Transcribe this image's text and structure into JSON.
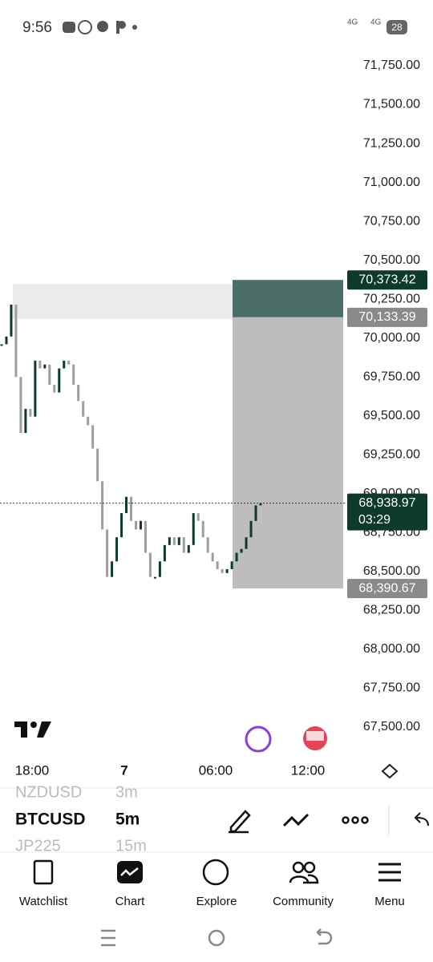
{
  "status_bar": {
    "time": "9:56",
    "network_1": "4G",
    "network_2": "4G",
    "battery": "28"
  },
  "chart": {
    "price_ticks": [
      {
        "value": 71750,
        "label": "71,750.00"
      },
      {
        "value": 71500,
        "label": "71,500.00"
      },
      {
        "value": 71250,
        "label": "71,250.00"
      },
      {
        "value": 71000,
        "label": "71,000.00"
      },
      {
        "value": 70750,
        "label": "70,750.00"
      },
      {
        "value": 70500,
        "label": "70,500.00"
      },
      {
        "value": 70250,
        "label": "70,250.00"
      },
      {
        "value": 70000,
        "label": "70,000.00"
      },
      {
        "value": 69750,
        "label": "69,750.00"
      },
      {
        "value": 69500,
        "label": "69,500.00"
      },
      {
        "value": 69250,
        "label": "69,250.00"
      },
      {
        "value": 69000,
        "label": "69,000.00"
      },
      {
        "value": 68750,
        "label": "68,750.00"
      },
      {
        "value": 68500,
        "label": "68,500.00"
      },
      {
        "value": 68250,
        "label": "68,250.00"
      },
      {
        "value": 68000,
        "label": "68,000.00"
      },
      {
        "value": 67750,
        "label": "67,750.00"
      },
      {
        "value": 67500,
        "label": "67,500.00"
      }
    ],
    "closes": [
      69960,
      70010,
      70215,
      69750,
      69390,
      69545,
      69495,
      69855,
      69805,
      69830,
      69700,
      69650,
      69805,
      69855,
      69830,
      69700,
      69595,
      69495,
      69440,
      69290,
      69080,
      68770,
      68465,
      68565,
      68720,
      68875,
      68980,
      68825,
      68770,
      68825,
      68620,
      68465,
      68465,
      68565,
      68670,
      68720,
      68670,
      68720,
      68620,
      68670,
      68875,
      68825,
      68720,
      68620,
      68565,
      68515,
      68490,
      68515,
      68565,
      68620,
      68645,
      68720,
      68825,
      68925,
      68938.97
    ],
    "target": {
      "value": 70373.42,
      "label": "70,373.42"
    },
    "entry": {
      "value": 70133.39,
      "label": "70,133.39"
    },
    "last_price": {
      "value": 68938.97,
      "label": "68,938.97"
    },
    "countdown": "03:29",
    "stop": {
      "value": 68390.67,
      "label": "68,390.67"
    },
    "time_labels": [
      "18:00",
      "7",
      "06:00",
      "12:00"
    ]
  },
  "toolbar": {
    "prev_symbol": "NZDUSD",
    "prev_interval": "3m",
    "symbol": "BTCUSD",
    "interval": "5m",
    "next_symbol": "JP225",
    "next_interval": "15m"
  },
  "nav": [
    "Watchlist",
    "Chart",
    "Explore",
    "Community",
    "Menu"
  ]
}
